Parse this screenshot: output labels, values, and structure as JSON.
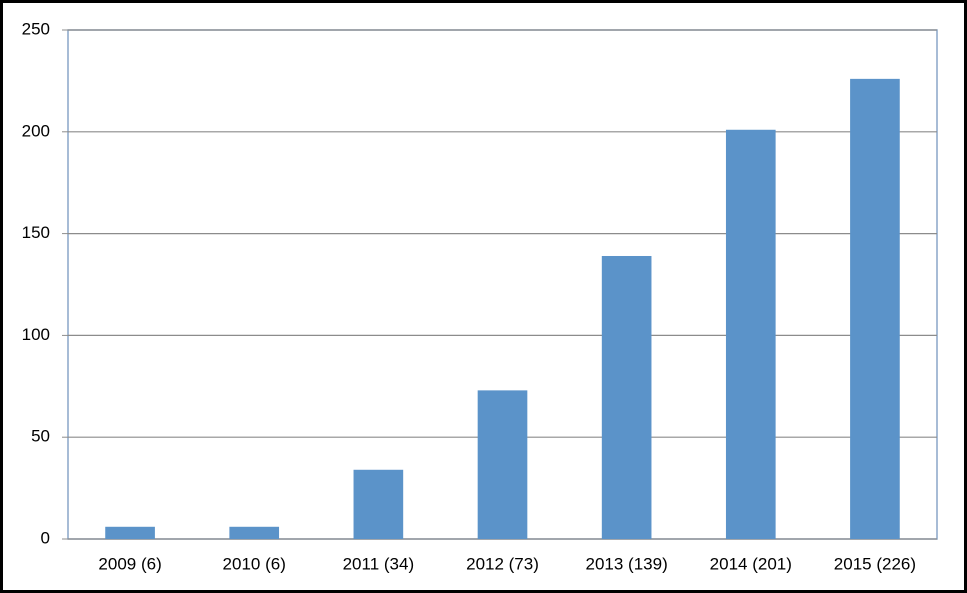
{
  "chart_data": {
    "type": "bar",
    "categories": [
      "2009 (6)",
      "2010 (6)",
      "2011 (34)",
      "2012 (73)",
      "2013 (139)",
      "2014 (201)",
      "2015 (226)"
    ],
    "values": [
      6,
      6,
      34,
      73,
      139,
      201,
      226
    ],
    "color": "#5b93c9",
    "ylim": [
      0,
      250
    ],
    "yticks": [
      0,
      50,
      100,
      150,
      200,
      250
    ],
    "grid": true
  }
}
